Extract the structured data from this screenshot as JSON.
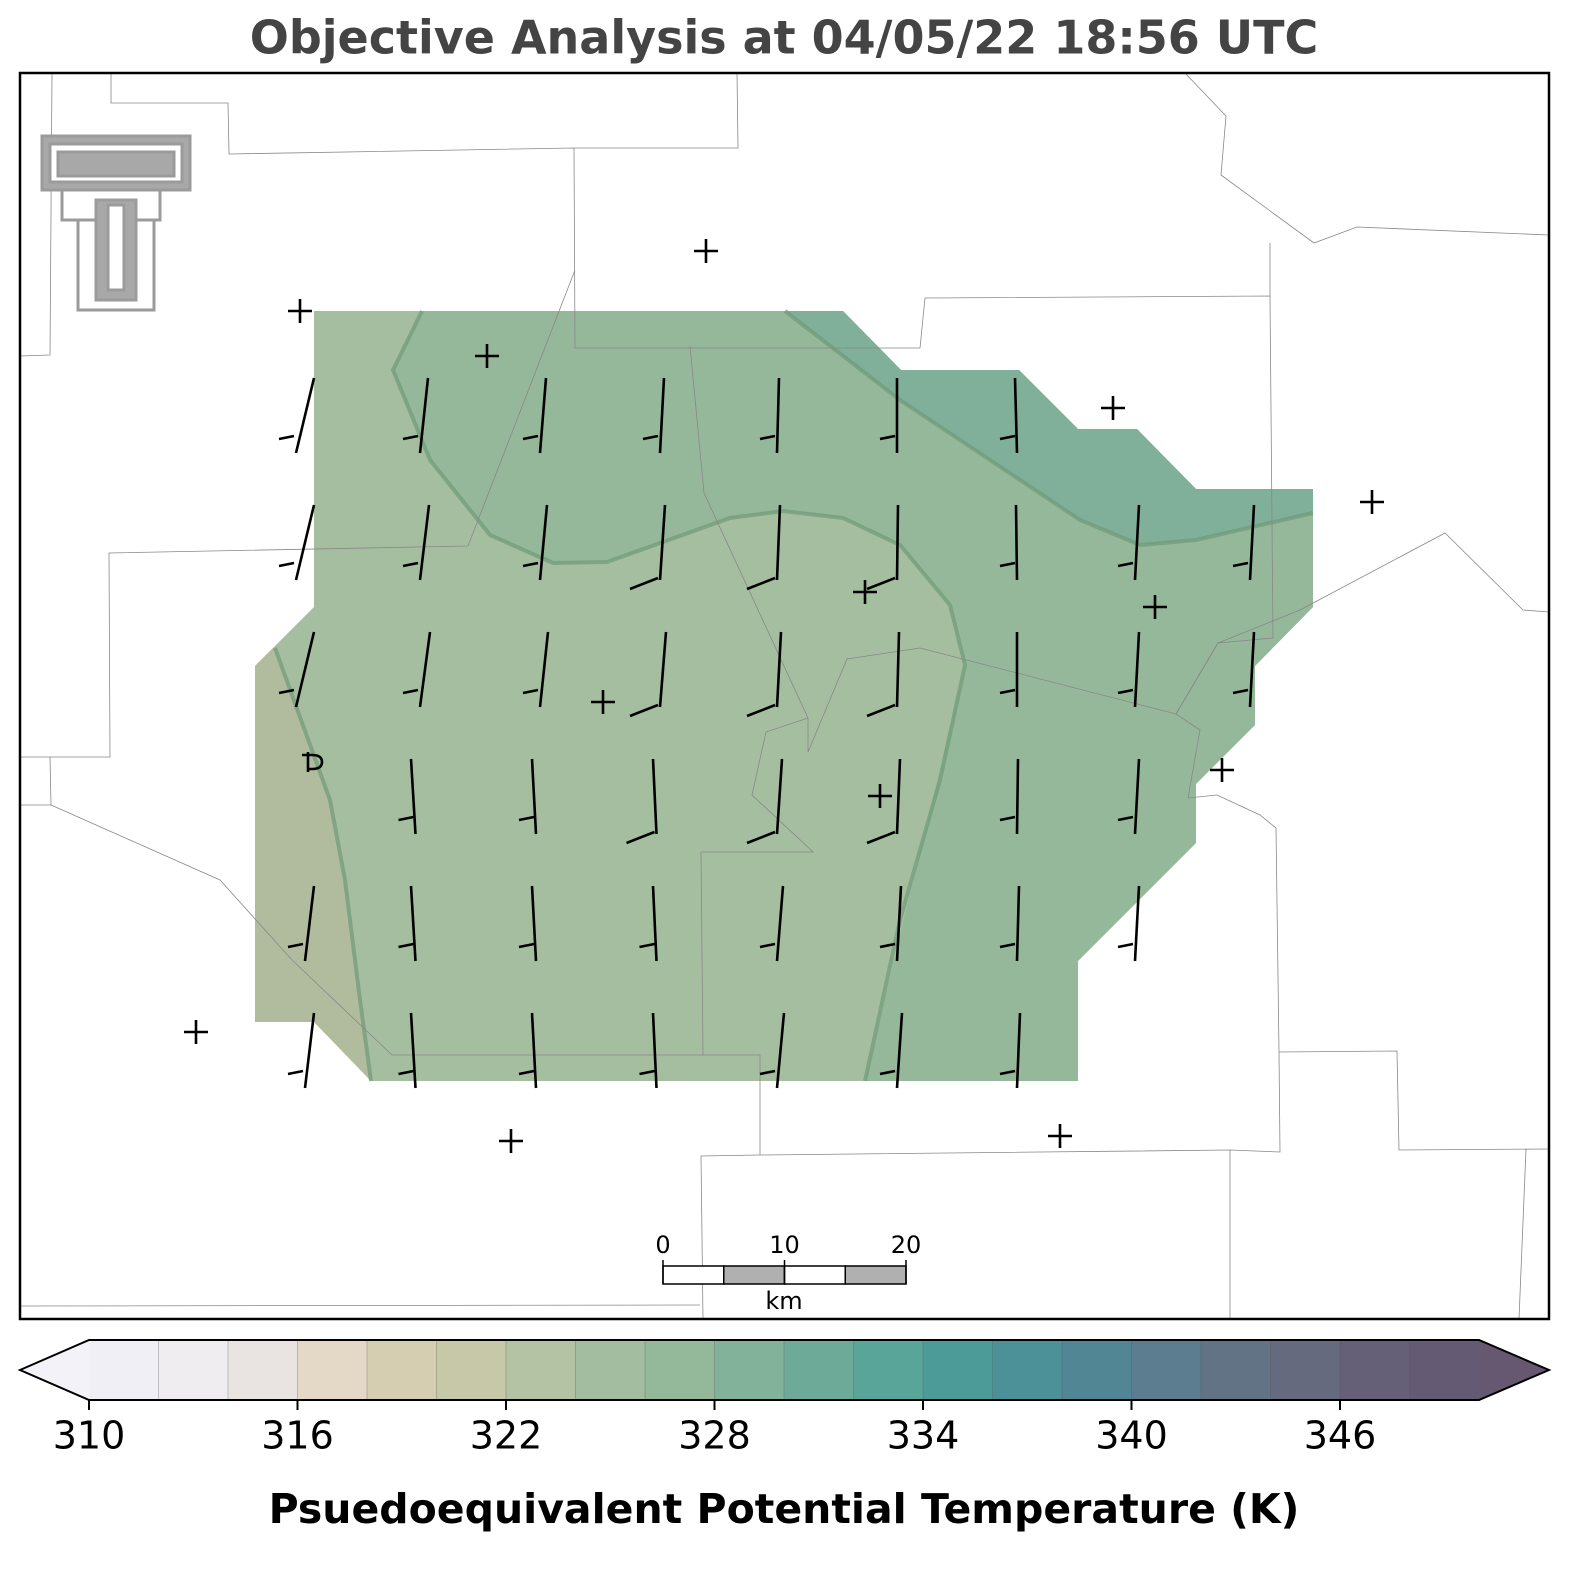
{
  "title": "Objective Analysis at 04/05/22 18:56 UTC",
  "scale_bar": {
    "ticks": [
      0,
      10,
      20
    ],
    "unit": "km"
  },
  "colorbar": {
    "label": "Psuedoequivalent Potential Temperature (K)",
    "levels": [
      310,
      312,
      314,
      316,
      318,
      320,
      322,
      324,
      326,
      328,
      330,
      332,
      334,
      336,
      338,
      340,
      342,
      344,
      346,
      348,
      350
    ],
    "ticks": [
      310,
      316,
      322,
      328,
      334,
      340,
      346
    ],
    "colors": [
      "#f0eff5",
      "#efedef",
      "#e9e4e1",
      "#e4d9c7",
      "#d5ceb1",
      "#c6c8a8",
      "#b3c3a3",
      "#a3bda0",
      "#93b99a",
      "#82b39a",
      "#6daa98",
      "#5aa59a",
      "#4d9b99",
      "#4c9098",
      "#518694",
      "#5c7d8f",
      "#637386",
      "#656a7f",
      "#665f78",
      "#655a73"
    ],
    "extend_colors": [
      "#f3f2f8",
      "#665870"
    ]
  }
}
